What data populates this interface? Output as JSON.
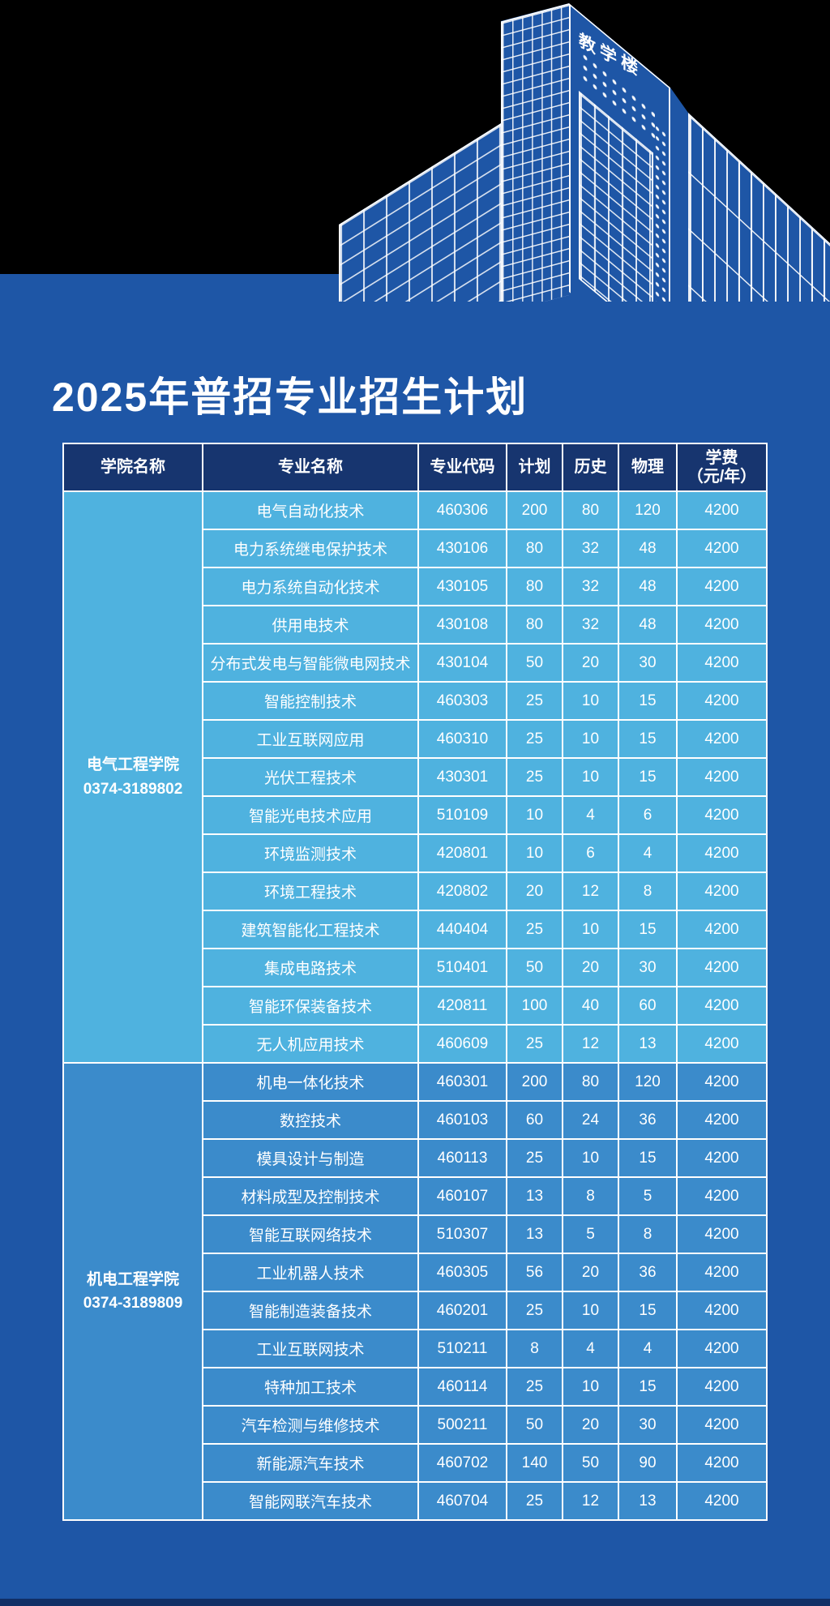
{
  "title": "2025年普招专业招生计划",
  "building": {
    "sign": "教学楼"
  },
  "colors": {
    "background": "#1E56A6",
    "top_band": "#000000",
    "header_bg": "#17356F",
    "group1_row_bg": "#4FB2DF",
    "group2_row_bg": "#3B8BCB",
    "footer_bar": "#112F66",
    "text": "#FFFFFF"
  },
  "table": {
    "headers": [
      "学院名称",
      "专业名称",
      "专业代码",
      "计划",
      "历史",
      "物理"
    ],
    "tuition_header": {
      "line1": "学费",
      "line2": "（元/年）"
    },
    "groups": [
      {
        "college": "电气工程学院",
        "phone": "0374-3189802",
        "rows": [
          [
            "电气自动化技术",
            "460306",
            "200",
            "80",
            "120",
            "4200"
          ],
          [
            "电力系统继电保护技术",
            "430106",
            "80",
            "32",
            "48",
            "4200"
          ],
          [
            "电力系统自动化技术",
            "430105",
            "80",
            "32",
            "48",
            "4200"
          ],
          [
            "供用电技术",
            "430108",
            "80",
            "32",
            "48",
            "4200"
          ],
          [
            "分布式发电与智能微电网技术",
            "430104",
            "50",
            "20",
            "30",
            "4200"
          ],
          [
            "智能控制技术",
            "460303",
            "25",
            "10",
            "15",
            "4200"
          ],
          [
            "工业互联网应用",
            "460310",
            "25",
            "10",
            "15",
            "4200"
          ],
          [
            "光伏工程技术",
            "430301",
            "25",
            "10",
            "15",
            "4200"
          ],
          [
            "智能光电技术应用",
            "510109",
            "10",
            "4",
            "6",
            "4200"
          ],
          [
            "环境监测技术",
            "420801",
            "10",
            "6",
            "4",
            "4200"
          ],
          [
            "环境工程技术",
            "420802",
            "20",
            "12",
            "8",
            "4200"
          ],
          [
            "建筑智能化工程技术",
            "440404",
            "25",
            "10",
            "15",
            "4200"
          ],
          [
            "集成电路技术",
            "510401",
            "50",
            "20",
            "30",
            "4200"
          ],
          [
            "智能环保装备技术",
            "420811",
            "100",
            "40",
            "60",
            "4200"
          ],
          [
            "无人机应用技术",
            "460609",
            "25",
            "12",
            "13",
            "4200"
          ]
        ]
      },
      {
        "college": "机电工程学院",
        "phone": "0374-3189809",
        "rows": [
          [
            "机电一体化技术",
            "460301",
            "200",
            "80",
            "120",
            "4200"
          ],
          [
            "数控技术",
            "460103",
            "60",
            "24",
            "36",
            "4200"
          ],
          [
            "模具设计与制造",
            "460113",
            "25",
            "10",
            "15",
            "4200"
          ],
          [
            "材料成型及控制技术",
            "460107",
            "13",
            "8",
            "5",
            "4200"
          ],
          [
            "智能互联网络技术",
            "510307",
            "13",
            "5",
            "8",
            "4200"
          ],
          [
            "工业机器人技术",
            "460305",
            "56",
            "20",
            "36",
            "4200"
          ],
          [
            "智能制造装备技术",
            "460201",
            "25",
            "10",
            "15",
            "4200"
          ],
          [
            "工业互联网技术",
            "510211",
            "8",
            "4",
            "4",
            "4200"
          ],
          [
            "特种加工技术",
            "460114",
            "25",
            "10",
            "15",
            "4200"
          ],
          [
            "汽车检测与维修技术",
            "500211",
            "50",
            "20",
            "30",
            "4200"
          ],
          [
            "新能源汽车技术",
            "460702",
            "140",
            "50",
            "90",
            "4200"
          ],
          [
            "智能网联汽车技术",
            "460704",
            "25",
            "12",
            "13",
            "4200"
          ]
        ]
      }
    ]
  }
}
